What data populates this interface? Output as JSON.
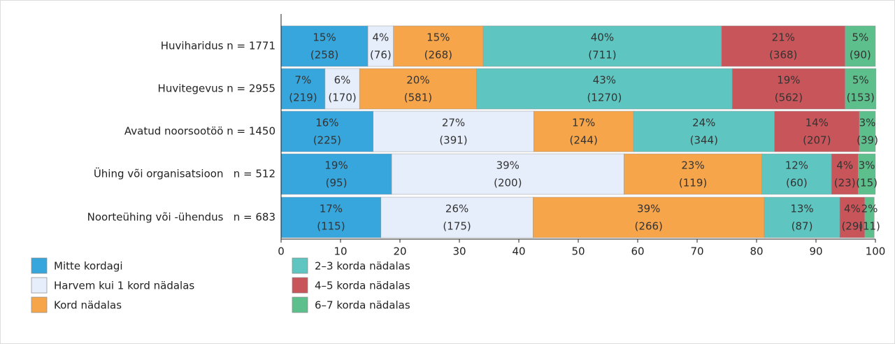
{
  "chart_data": {
    "type": "stacked-barh",
    "categories": [
      "Huviharidus n = 1771",
      "Huvitegevus n = 2955",
      "Avatud noorsootöö n = 1450",
      "Ühing või organisatsioon   n = 512",
      "Noorteühing või -ühendus   n = 683"
    ],
    "series": [
      {
        "name": "Mitte kordagi",
        "color": "#36a6dc",
        "values": [
          14.6,
          7.4,
          15.5,
          18.6,
          16.8
        ],
        "value_labels": [
          "15%",
          "7%",
          "16%",
          "19%",
          "17%"
        ],
        "count_labels": [
          "(258)",
          "(219)",
          "(225)",
          "(95)",
          "(115)"
        ]
      },
      {
        "name": "Harvem kui 1 kord nädalas",
        "color": "#e6edfb",
        "values": [
          4.3,
          5.8,
          27.0,
          39.1,
          25.6
        ],
        "value_labels": [
          "4%",
          "6%",
          "27%",
          "39%",
          "26%"
        ],
        "count_labels": [
          "(76)",
          "(170)",
          "(391)",
          "(200)",
          "(175)"
        ]
      },
      {
        "name": "Kord nädalas",
        "color": "#f6a54a",
        "values": [
          15.1,
          19.7,
          16.8,
          23.2,
          38.9
        ],
        "value_labels": [
          "15%",
          "20%",
          "17%",
          "23%",
          "39%"
        ],
        "count_labels": [
          "(268)",
          "(581)",
          "(244)",
          "(119)",
          "(266)"
        ]
      },
      {
        "name": "2–3 korda nädalas",
        "color": "#5ec5c0",
        "values": [
          40.1,
          43.0,
          23.7,
          11.7,
          12.7
        ],
        "value_labels": [
          "40%",
          "43%",
          "24%",
          "12%",
          "13%"
        ],
        "count_labels": [
          "(711)",
          "(1270)",
          "(344)",
          "(60)",
          "(87)"
        ]
      },
      {
        "name": "4–5 korda nädalas",
        "color": "#c8555a",
        "values": [
          20.8,
          19.0,
          14.3,
          4.49,
          4.2
        ],
        "value_labels": [
          "21%",
          "19%",
          "14%",
          "4%",
          "4%"
        ],
        "count_labels": [
          "(368)",
          "(562)",
          "(207)",
          "(23)",
          "(29)"
        ]
      },
      {
        "name": "6–7 korda nädalas",
        "color": "#5dbf8c",
        "values": [
          5.1,
          5.2,
          2.7,
          2.9,
          1.6
        ],
        "value_labels": [
          "5%",
          "5%",
          "3%",
          "3%",
          "2%"
        ],
        "count_labels": [
          "(90)",
          "(153)",
          "(39)",
          "(15)",
          "(11)"
        ]
      }
    ],
    "xlim": [
      0,
      100
    ],
    "xticks": [
      0,
      10,
      20,
      30,
      40,
      50,
      60,
      70,
      80,
      90,
      100
    ]
  }
}
